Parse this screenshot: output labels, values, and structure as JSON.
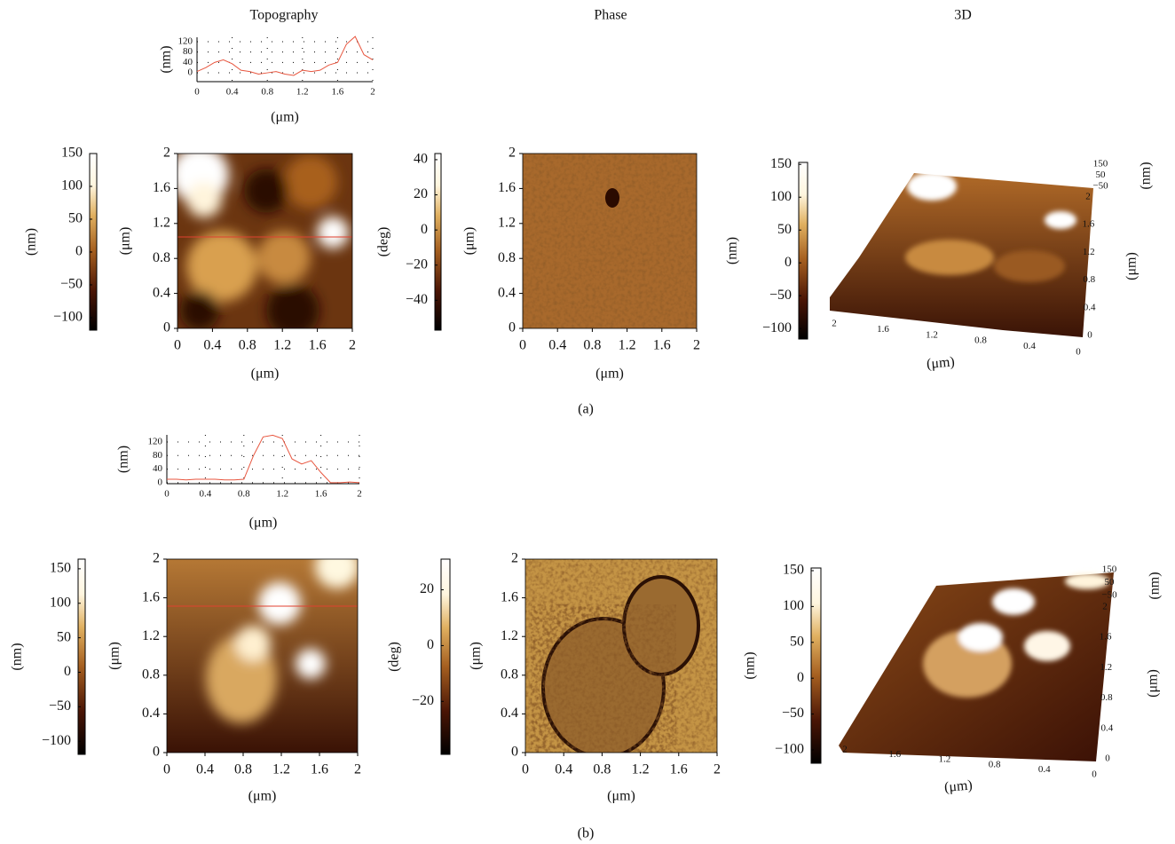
{
  "columns": [
    "Topography",
    "Phase",
    "3D"
  ],
  "panels": [
    {
      "label": "(a)",
      "profile": {
        "type": "line",
        "color": "#e8563f",
        "grid": true,
        "x": [
          0,
          0.1,
          0.2,
          0.3,
          0.4,
          0.5,
          0.6,
          0.7,
          0.8,
          0.9,
          1.0,
          1.1,
          1.2,
          1.3,
          1.4,
          1.5,
          1.6,
          1.7,
          1.8,
          1.9,
          2.0
        ],
        "values": [
          5,
          20,
          40,
          50,
          35,
          10,
          5,
          -5,
          0,
          5,
          -5,
          -10,
          10,
          5,
          10,
          30,
          40,
          110,
          140,
          70,
          50
        ],
        "xlim": [
          0,
          2
        ],
        "ylim": [
          -34,
          137
        ],
        "xticks": [
          0,
          0.4,
          0.8,
          1.2,
          1.6,
          2
        ],
        "yticks": [
          0,
          40,
          80,
          120
        ],
        "xlabel": "(μm)",
        "ylabel": "(nm)"
      },
      "topography_colorbar": {
        "ylim": [
          -119,
          150
        ],
        "yticks": [
          {
            "value": -100,
            "label": "−100"
          },
          {
            "value": -50,
            "label": "−50"
          },
          0,
          50,
          100,
          150
        ],
        "label": "(nm)"
      },
      "topography_image": {
        "xlim": [
          0,
          2
        ],
        "ylim": [
          0,
          2
        ],
        "xticks": [
          0,
          0.4,
          0.8,
          1.2,
          1.6,
          2
        ],
        "yticks": [
          0,
          0.4,
          0.8,
          1.2,
          1.6,
          2
        ],
        "xlabel": "(μm)",
        "ylabel": "(μm)"
      },
      "phase_colorbar": {
        "ylim": [
          -57,
          43.5
        ],
        "yticks": [
          {
            "value": -40,
            "label": "−40"
          },
          {
            "value": -20,
            "label": "−20"
          },
          0,
          20,
          40
        ],
        "label": "(deg)"
      },
      "phase_image": {
        "xlim": [
          0,
          2
        ],
        "ylim": [
          0,
          2
        ],
        "xticks": [
          0,
          0.4,
          0.8,
          1.2,
          1.6,
          2
        ],
        "yticks": [
          0,
          0.4,
          0.8,
          1.2,
          1.6,
          2
        ],
        "xlabel": "(μm)",
        "ylabel": "(μm)"
      },
      "view_3d": {
        "colorbar": {
          "ylim": [
            -116,
            153
          ],
          "yticks": [
            {
              "value": -100,
              "label": "−100"
            },
            {
              "value": -50,
              "label": "−50"
            },
            0,
            50,
            100,
            150
          ],
          "label": "(nm)"
        },
        "zlim": [
          -50,
          150
        ],
        "zticks": [
          {
            "value": -50,
            "label": "−50"
          },
          50,
          150
        ],
        "zlabel": "(nm)",
        "ylim": [
          0,
          2
        ],
        "yticks": [
          0,
          0.4,
          0.8,
          1.2,
          1.6,
          2
        ],
        "ylabel": "(μm)",
        "xlim": [
          0,
          2
        ],
        "xticks": [
          0,
          0.4,
          0.8,
          1.2,
          1.6,
          2
        ],
        "xlabel": "(μm)"
      }
    },
    {
      "label": "(b)",
      "profile": {
        "type": "line",
        "color": "#e8563f",
        "grid": true,
        "x": [
          0,
          0.1,
          0.2,
          0.3,
          0.4,
          0.5,
          0.6,
          0.7,
          0.8,
          0.9,
          1.0,
          1.1,
          1.2,
          1.3,
          1.4,
          1.5,
          1.6,
          1.7,
          1.8,
          1.9,
          2.0
        ],
        "values": [
          10,
          10,
          8,
          10,
          10,
          10,
          8,
          8,
          10,
          80,
          135,
          140,
          130,
          70,
          55,
          65,
          30,
          0,
          0,
          2,
          0
        ],
        "xlim": [
          0,
          2
        ],
        "ylim": [
          -3,
          141
        ],
        "xticks": [
          0,
          0.4,
          0.8,
          1.2,
          1.6,
          2
        ],
        "yticks": [
          0,
          40,
          80,
          120
        ],
        "xlabel": "(μm)",
        "ylabel": "(nm)"
      },
      "topography_colorbar": {
        "ylim": [
          -119,
          164
        ],
        "yticks": [
          {
            "value": -100,
            "label": "−100"
          },
          {
            "value": -50,
            "label": "−50"
          },
          0,
          50,
          100,
          150
        ],
        "label": "(nm)"
      },
      "topography_image": {
        "xlim": [
          0,
          2
        ],
        "ylim": [
          0,
          2
        ],
        "xticks": [
          0,
          0.4,
          0.8,
          1.2,
          1.6,
          2
        ],
        "yticks": [
          0,
          0.4,
          0.8,
          1.2,
          1.6,
          2
        ],
        "xlabel": "(μm)",
        "ylabel": "(μm)"
      },
      "phase_colorbar": {
        "ylim": [
          -39,
          31
        ],
        "yticks": [
          {
            "value": -20,
            "label": "−20"
          },
          0,
          20
        ],
        "label": "(deg)"
      },
      "phase_image": {
        "xlim": [
          0,
          2
        ],
        "ylim": [
          0,
          2
        ],
        "xticks": [
          0,
          0.4,
          0.8,
          1.2,
          1.6,
          2
        ],
        "yticks": [
          0,
          0.4,
          0.8,
          1.2,
          1.6,
          2
        ],
        "xlabel": "(μm)",
        "ylabel": "(μm)"
      },
      "view_3d": {
        "colorbar": {
          "ylim": [
            -118.6,
            153.7
          ],
          "yticks": [
            {
              "value": -100,
              "label": "−100"
            },
            {
              "value": -50,
              "label": "−50"
            },
            0,
            50,
            100,
            150
          ],
          "label": "(nm)"
        },
        "zlim": [
          -50,
          150
        ],
        "zticks": [
          {
            "value": -50,
            "label": "−50"
          },
          50,
          150
        ],
        "zlabel": "(nm)",
        "ylim": [
          0,
          2
        ],
        "yticks": [
          0,
          0.4,
          0.8,
          1.2,
          1.6,
          2
        ],
        "ylabel": "(μm)",
        "xlim": [
          0,
          2
        ],
        "xticks": [
          0,
          0.4,
          0.8,
          1.2,
          1.6,
          2
        ],
        "xlabel": "(μm)"
      }
    }
  ]
}
